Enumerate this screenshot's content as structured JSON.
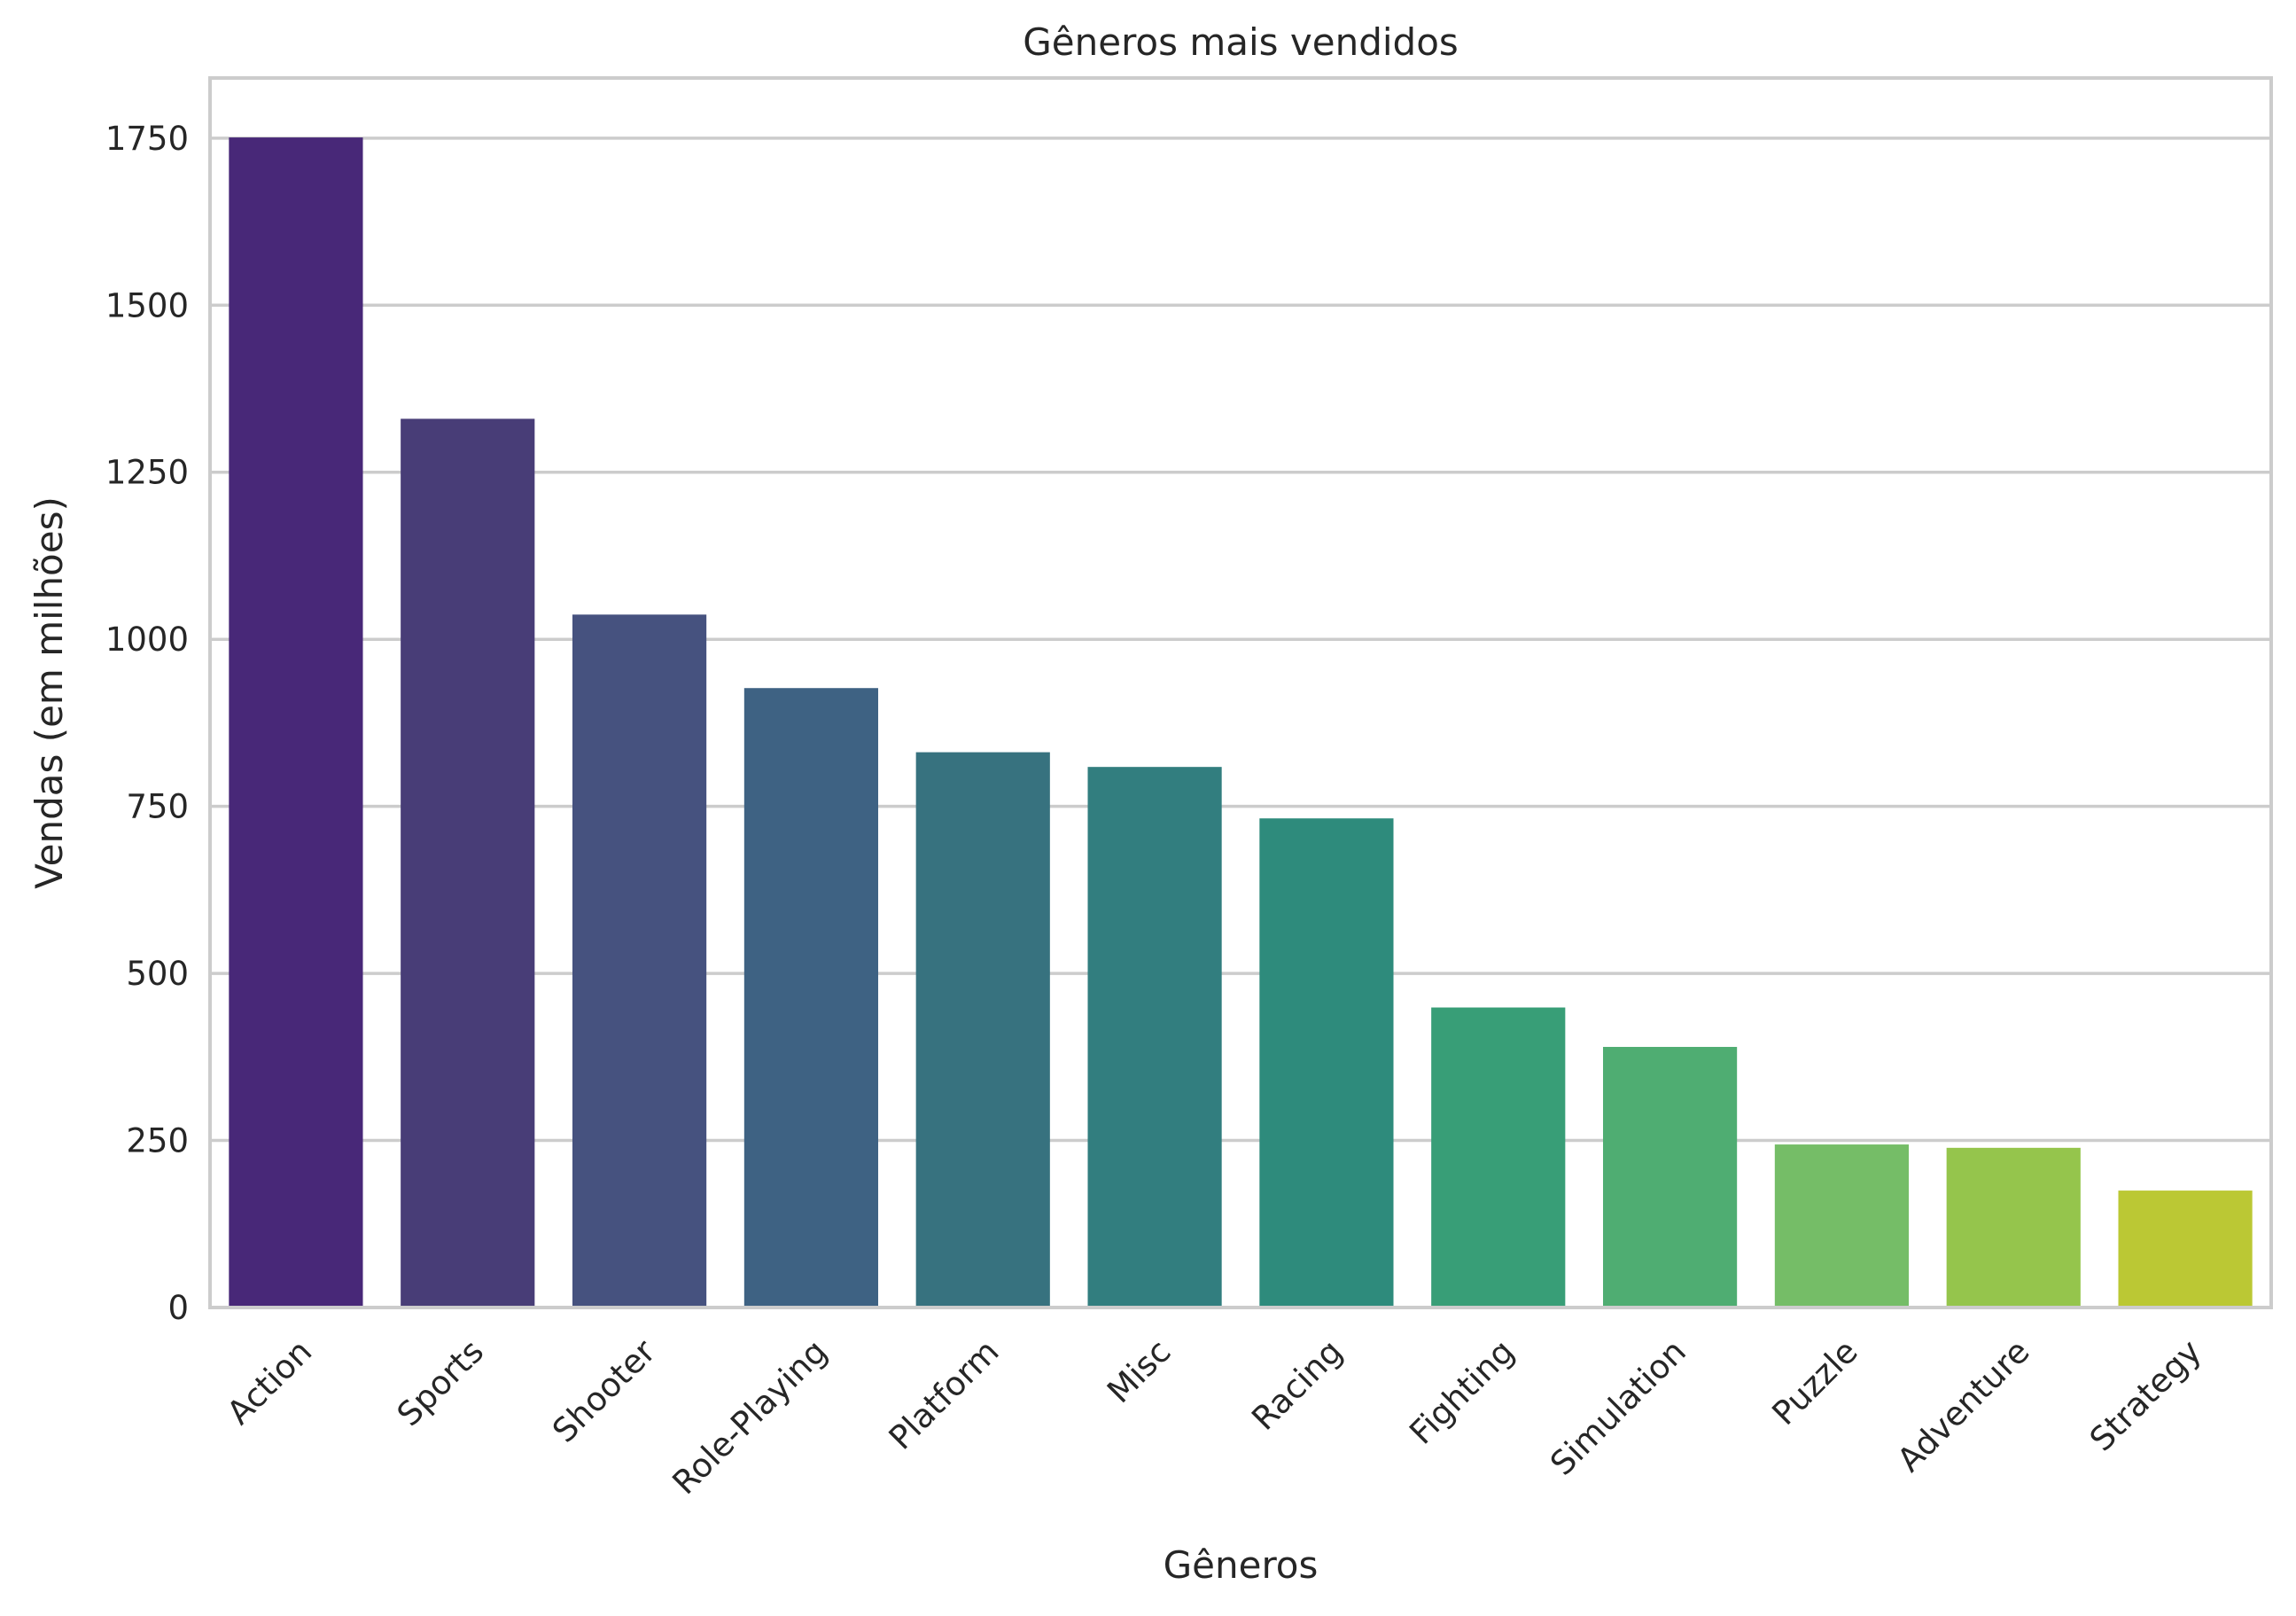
{
  "chart_data": {
    "type": "bar",
    "title": "Gêneros mais vendidos",
    "xlabel": "Gêneros",
    "ylabel": "Vendas (em milhões)",
    "categories": [
      "Action",
      "Sports",
      "Shooter",
      "Role-Playing",
      "Platform",
      "Misc",
      "Racing",
      "Fighting",
      "Simulation",
      "Puzzle",
      "Adventure",
      "Strategy"
    ],
    "values": [
      1751,
      1330,
      1037,
      927,
      831,
      809,
      732,
      449,
      390,
      244,
      239,
      175
    ],
    "colors": [
      "#482878",
      "#483d77",
      "#46527f",
      "#3e6283",
      "#37727f",
      "#327e7f",
      "#2e8b7c",
      "#389e77",
      "#4fad72",
      "#75bd67",
      "#95c54c",
      "#bbc834"
    ],
    "ylim": [
      0,
      1840
    ],
    "yticks": [
      0,
      250,
      500,
      750,
      1000,
      1250,
      1500,
      1750
    ],
    "grid": "y",
    "legend": "none"
  }
}
